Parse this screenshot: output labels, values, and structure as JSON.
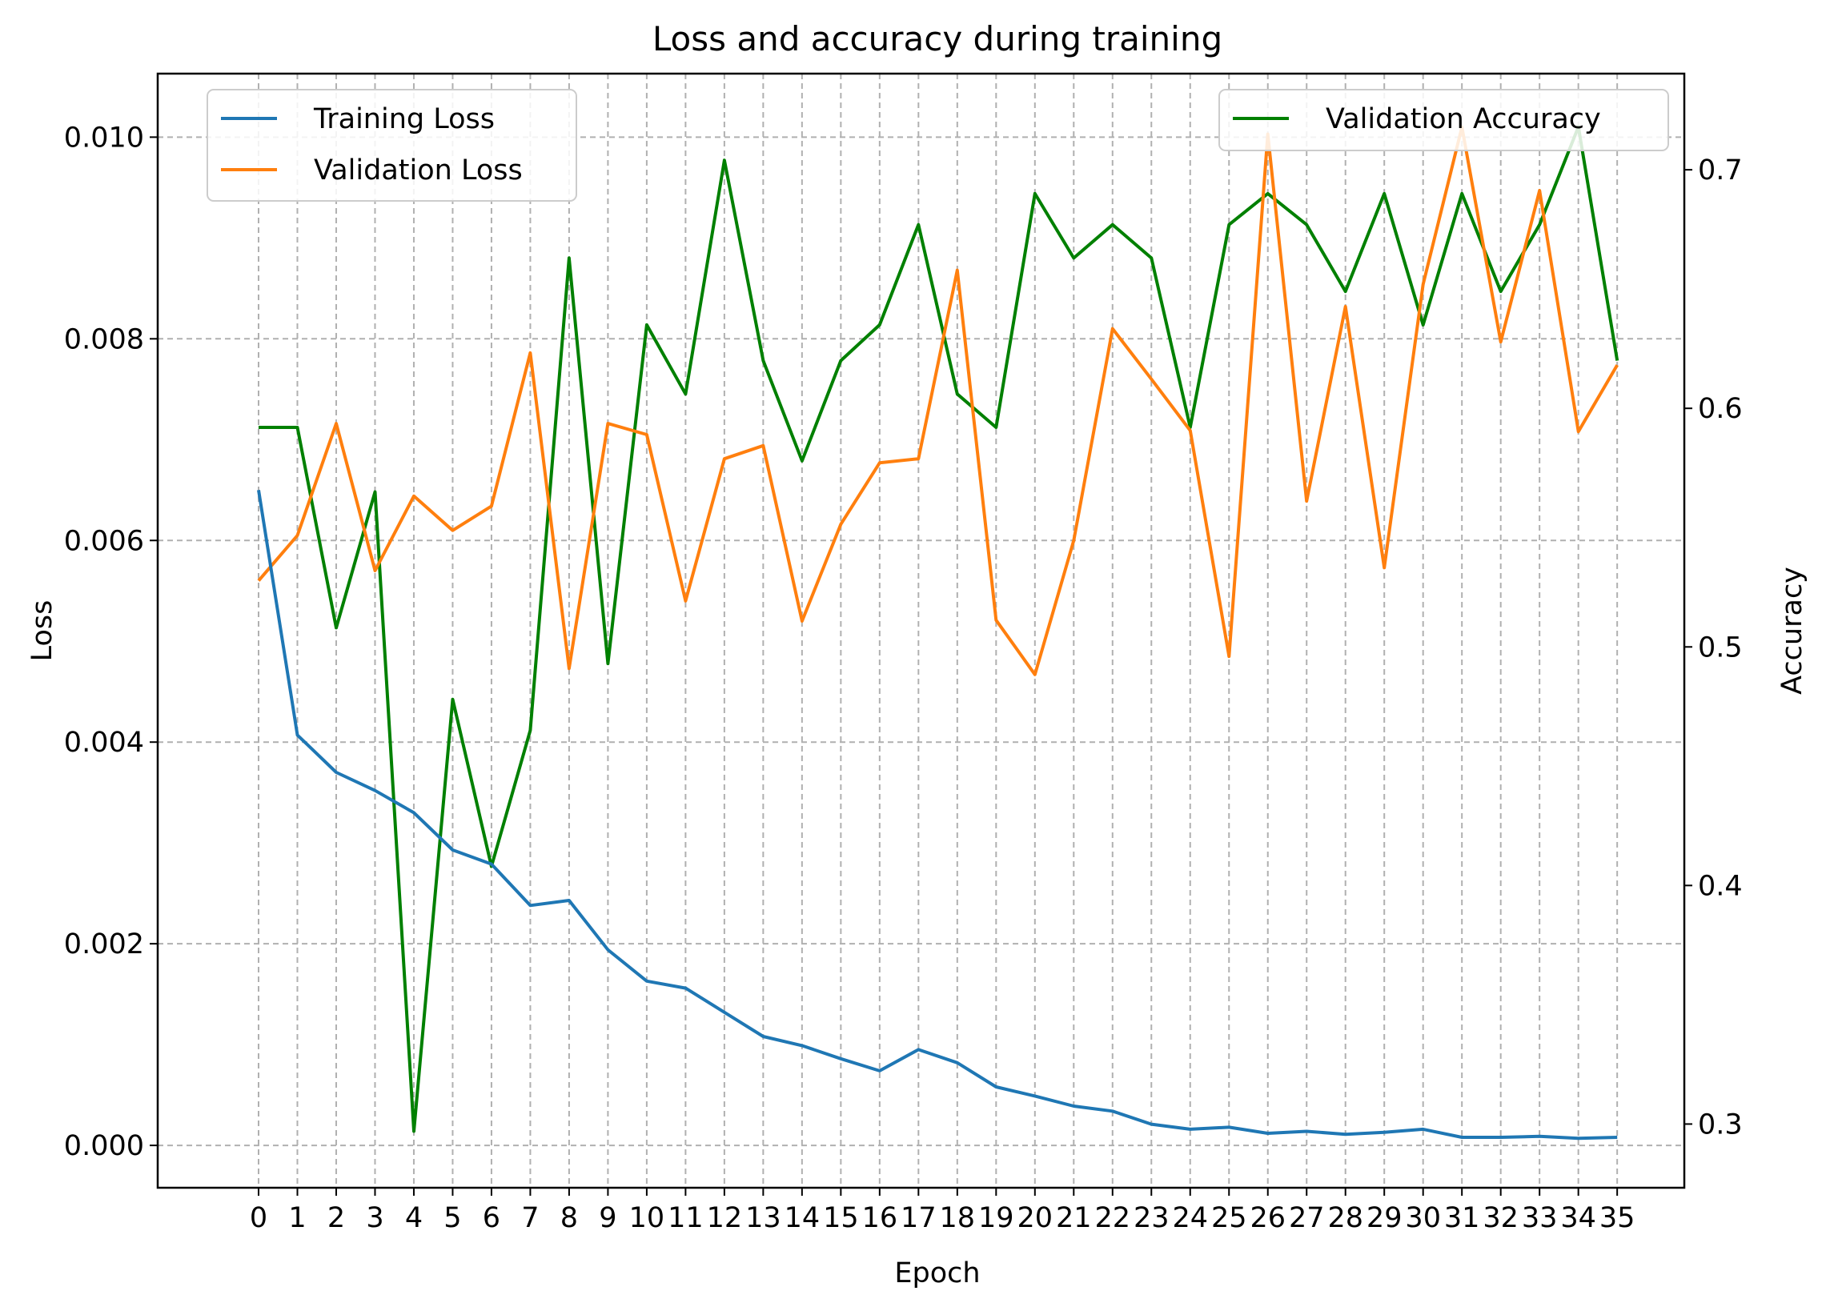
{
  "chart_data": {
    "type": "line",
    "title": "Loss and accuracy during training",
    "xlabel": "Epoch",
    "ylabel_left": "Loss",
    "ylabel_right": "Accuracy",
    "grid": true,
    "x": [
      0,
      1,
      2,
      3,
      4,
      5,
      6,
      7,
      8,
      9,
      10,
      11,
      12,
      13,
      14,
      15,
      16,
      17,
      18,
      19,
      20,
      21,
      22,
      23,
      24,
      25,
      26,
      27,
      28,
      29,
      30,
      31,
      32,
      33,
      34,
      35
    ],
    "x_tick_labels": [
      "0",
      "1",
      "2",
      "3",
      "4",
      "5",
      "6",
      "7",
      "8",
      "9",
      "10",
      "11",
      "12",
      "13",
      "14",
      "15",
      "16",
      "17",
      "18",
      "19",
      "20",
      "21",
      "22",
      "23",
      "24",
      "25",
      "26",
      "27",
      "28",
      "29",
      "30",
      "31",
      "32",
      "33",
      "34",
      "35"
    ],
    "ylim_left": [
      -0.00042,
      0.01063
    ],
    "ylim_right": [
      0.2733,
      0.7403
    ],
    "left_ticks": [
      0.0,
      0.002,
      0.004,
      0.006,
      0.008,
      0.01
    ],
    "left_tick_labels": [
      "0.000",
      "0.002",
      "0.004",
      "0.006",
      "0.008",
      "0.010"
    ],
    "right_ticks": [
      0.3,
      0.4,
      0.5,
      0.6,
      0.7
    ],
    "right_tick_labels": [
      "0.3",
      "0.4",
      "0.5",
      "0.6",
      "0.7"
    ],
    "series": [
      {
        "name": "Training Loss",
        "axis": "left",
        "color": "#1f77b4",
        "values": [
          0.0065,
          0.00407,
          0.0037,
          0.00352,
          0.0033,
          0.00293,
          0.00279,
          0.00238,
          0.00243,
          0.00194,
          0.00163,
          0.00156,
          0.00132,
          0.00108,
          0.00099,
          0.00086,
          0.00074,
          0.00095,
          0.00082,
          0.00058,
          0.00049,
          0.00039,
          0.00034,
          0.00021,
          0.00016,
          0.00018,
          0.00012,
          0.00014,
          0.00011,
          0.00013,
          0.00016,
          8e-05,
          8e-05,
          9e-05,
          7e-05,
          8e-05
        ]
      },
      {
        "name": "Validation Loss",
        "axis": "left",
        "color": "#ff7f0e",
        "values": [
          0.0056,
          0.00605,
          0.00716,
          0.0057,
          0.00644,
          0.0061,
          0.00634,
          0.00786,
          0.00473,
          0.00716,
          0.00705,
          0.0054,
          0.00681,
          0.00694,
          0.0052,
          0.00616,
          0.00677,
          0.00681,
          0.00868,
          0.00521,
          0.00467,
          0.006,
          0.0081,
          0.0076,
          0.00709,
          0.00485,
          0.01003,
          0.00639,
          0.00832,
          0.00573,
          0.00854,
          0.0101,
          0.00797,
          0.00947,
          0.00708,
          0.00774
        ]
      },
      {
        "name": "Validation Accuracy",
        "axis": "right",
        "color": "#008000",
        "values": [
          0.592,
          0.592,
          0.508,
          0.565,
          0.297,
          0.478,
          0.408,
          0.465,
          0.663,
          0.493,
          0.635,
          0.606,
          0.704,
          0.62,
          0.578,
          0.62,
          0.635,
          0.677,
          0.606,
          0.592,
          0.69,
          0.663,
          0.677,
          0.663,
          0.592,
          0.677,
          0.69,
          0.677,
          0.649,
          0.69,
          0.635,
          0.69,
          0.649,
          0.677,
          0.718,
          0.62
        ]
      }
    ],
    "legends": [
      {
        "placement": "upper-left",
        "entries": [
          "Training Loss",
          "Validation Loss"
        ]
      },
      {
        "placement": "upper-right",
        "entries": [
          "Validation Accuracy"
        ]
      }
    ]
  }
}
